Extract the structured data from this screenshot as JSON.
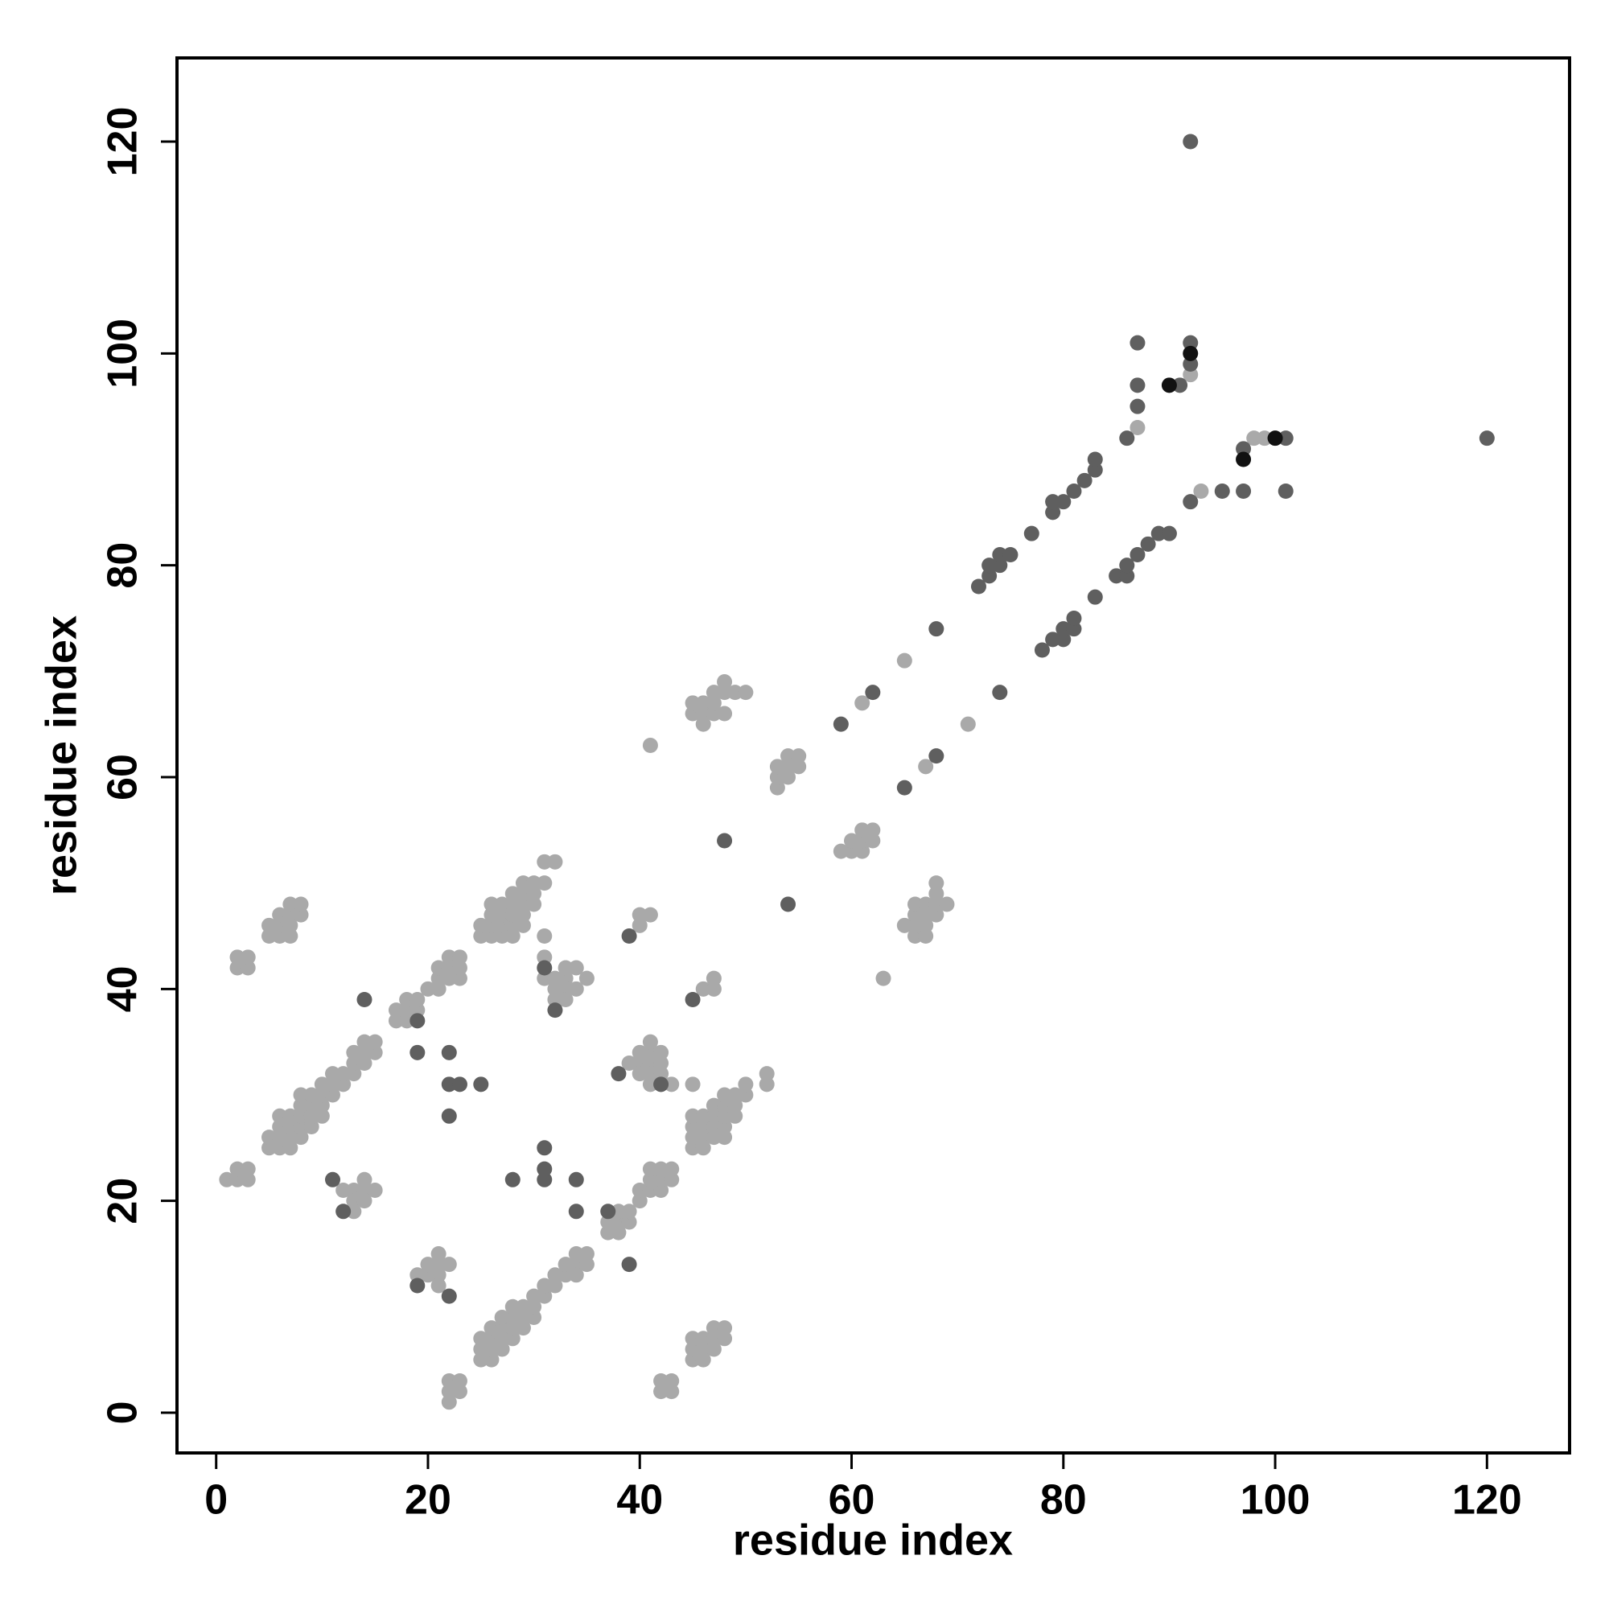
{
  "chart_data": {
    "type": "scatter",
    "x_label": "residue index",
    "y_label": "residue index",
    "xlim": [
      -3.7,
      127.8
    ],
    "ylim": [
      -3.8,
      127.9
    ],
    "xticks": [
      0,
      20,
      40,
      60,
      80,
      100,
      120
    ],
    "yticks": [
      0,
      20,
      40,
      60,
      80,
      100,
      120
    ],
    "series": [
      {
        "color": "#a9a9a9",
        "x": [
          1,
          2,
          3,
          2,
          3,
          2,
          3,
          2,
          3,
          5,
          6,
          7,
          5,
          6,
          7,
          6,
          7,
          8,
          7,
          8,
          5,
          6,
          7,
          5,
          6,
          7,
          8,
          6,
          7,
          8,
          9,
          6,
          7,
          8,
          9,
          10,
          8,
          9,
          10,
          8,
          9,
          10,
          11,
          10,
          11,
          12,
          11,
          12,
          13,
          13,
          14,
          13,
          14,
          15,
          14,
          15,
          17,
          18,
          17,
          18,
          19,
          18,
          19,
          20,
          21,
          21,
          22,
          23,
          21,
          22,
          23,
          22,
          23,
          12,
          13,
          14,
          15,
          13,
          14,
          13,
          14,
          19,
          20,
          21,
          20,
          21,
          22,
          21,
          21,
          22,
          22,
          23,
          22,
          23,
          25,
          26,
          27,
          28,
          25,
          26,
          27,
          28,
          29,
          26,
          27,
          28,
          29,
          26,
          27,
          28,
          29,
          30,
          28,
          29,
          30,
          29,
          30,
          31,
          31,
          32,
          31,
          31,
          31,
          32,
          33,
          32,
          33,
          34,
          33,
          34,
          35,
          32,
          33,
          25,
          26,
          25,
          26,
          27,
          25,
          26,
          27,
          28,
          26,
          27,
          28,
          29,
          27,
          28,
          29,
          30,
          28,
          29,
          30,
          30,
          31,
          31,
          32,
          32,
          33,
          33,
          34,
          34,
          34,
          35,
          35,
          37,
          38,
          37,
          38,
          39,
          38,
          39,
          40,
          40,
          41,
          42,
          41,
          42,
          43,
          41,
          42,
          43,
          39,
          40,
          41,
          42,
          40,
          41,
          42,
          40,
          41,
          42,
          41,
          41,
          42,
          43,
          42,
          43,
          42,
          43,
          45,
          46,
          45,
          46,
          47,
          45,
          46,
          47,
          48,
          47,
          48,
          45,
          46,
          45,
          46,
          47,
          48,
          45,
          46,
          47,
          48,
          45,
          46,
          47,
          48,
          49,
          47,
          48,
          49,
          48,
          49,
          50,
          50,
          52,
          52,
          45,
          40,
          40,
          41,
          46,
          47,
          47,
          41,
          45,
          46,
          47,
          48,
          45,
          46,
          47,
          46,
          47,
          48,
          49,
          50,
          48,
          53,
          53,
          54,
          53,
          54,
          55,
          54,
          55,
          59,
          60,
          61,
          60,
          61,
          62,
          61,
          62,
          65,
          66,
          67,
          66,
          67,
          66,
          67,
          68,
          66,
          67,
          68,
          69,
          68,
          68,
          61,
          65,
          71,
          67,
          63,
          87,
          92,
          93,
          98,
          99
        ],
        "y": [
          22,
          22,
          22,
          23,
          23,
          42,
          42,
          43,
          43,
          45,
          45,
          45,
          46,
          46,
          46,
          47,
          47,
          47,
          48,
          48,
          25,
          25,
          25,
          26,
          26,
          26,
          26,
          27,
          27,
          27,
          27,
          28,
          28,
          28,
          28,
          28,
          29,
          29,
          29,
          30,
          30,
          30,
          30,
          31,
          31,
          31,
          32,
          32,
          32,
          33,
          33,
          34,
          34,
          34,
          35,
          35,
          37,
          37,
          38,
          38,
          38,
          39,
          39,
          40,
          40,
          41,
          41,
          41,
          42,
          42,
          42,
          43,
          43,
          21,
          21,
          21,
          21,
          20,
          20,
          19,
          22,
          13,
          13,
          13,
          14,
          14,
          14,
          15,
          12,
          1,
          2,
          2,
          3,
          3,
          45,
          45,
          45,
          45,
          46,
          46,
          46,
          46,
          46,
          47,
          47,
          47,
          47,
          48,
          48,
          48,
          48,
          48,
          49,
          49,
          49,
          50,
          50,
          50,
          52,
          52,
          45,
          43,
          41,
          41,
          41,
          40,
          40,
          40,
          42,
          42,
          41,
          39,
          39,
          5,
          5,
          6,
          6,
          6,
          7,
          7,
          7,
          7,
          8,
          8,
          8,
          8,
          9,
          9,
          9,
          9,
          10,
          10,
          10,
          11,
          11,
          12,
          12,
          13,
          13,
          14,
          14,
          13,
          15,
          14,
          15,
          17,
          17,
          18,
          18,
          18,
          19,
          19,
          20,
          21,
          21,
          21,
          22,
          22,
          22,
          23,
          23,
          23,
          33,
          33,
          33,
          33,
          32,
          32,
          32,
          34,
          34,
          34,
          35,
          31,
          31,
          31,
          2,
          2,
          3,
          3,
          5,
          5,
          6,
          6,
          6,
          7,
          7,
          7,
          7,
          8,
          8,
          25,
          25,
          26,
          26,
          26,
          26,
          27,
          27,
          27,
          27,
          28,
          28,
          28,
          28,
          28,
          29,
          29,
          29,
          30,
          30,
          30,
          31,
          31,
          32,
          31,
          46,
          47,
          47,
          40,
          40,
          41,
          63,
          66,
          66,
          66,
          66,
          67,
          67,
          67,
          65,
          68,
          68,
          68,
          68,
          69,
          59,
          60,
          60,
          61,
          61,
          61,
          62,
          62,
          53,
          53,
          53,
          54,
          54,
          54,
          55,
          55,
          46,
          45,
          45,
          46,
          46,
          47,
          47,
          47,
          48,
          48,
          48,
          48,
          49,
          50,
          67,
          71,
          65,
          61,
          41,
          93,
          98,
          87,
          92,
          92
        ]
      },
      {
        "color": "#5f5f5f",
        "x": [
          14,
          19,
          19,
          22,
          22,
          23,
          25,
          22,
          11,
          12,
          19,
          22,
          28,
          31,
          31,
          31,
          34,
          34,
          37,
          38,
          39,
          39,
          42,
          31,
          32,
          45,
          48,
          54,
          59,
          62,
          65,
          68,
          68,
          74,
          72,
          73,
          73,
          74,
          74,
          75,
          77,
          79,
          79,
          80,
          81,
          82,
          83,
          83,
          86,
          87,
          87,
          87,
          91,
          92,
          92,
          78,
          79,
          80,
          80,
          81,
          81,
          83,
          85,
          86,
          86,
          87,
          88,
          89,
          90,
          92,
          95,
          97,
          97,
          101,
          101,
          120,
          92
        ],
        "y": [
          39,
          37,
          34,
          34,
          31,
          31,
          31,
          28,
          22,
          19,
          12,
          11,
          22,
          22,
          23,
          25,
          22,
          19,
          19,
          32,
          14,
          45,
          31,
          42,
          38,
          39,
          54,
          48,
          65,
          68,
          59,
          62,
          74,
          68,
          78,
          79,
          80,
          80,
          81,
          81,
          83,
          85,
          86,
          86,
          87,
          88,
          89,
          90,
          92,
          95,
          97,
          101,
          97,
          99,
          101,
          72,
          73,
          73,
          74,
          74,
          75,
          77,
          79,
          79,
          80,
          81,
          82,
          83,
          83,
          86,
          87,
          87,
          91,
          87,
          92,
          92,
          120
        ]
      },
      {
        "color": "#111111",
        "x": [
          90,
          92,
          97,
          100
        ],
        "y": [
          97,
          100,
          90,
          92
        ]
      }
    ]
  }
}
